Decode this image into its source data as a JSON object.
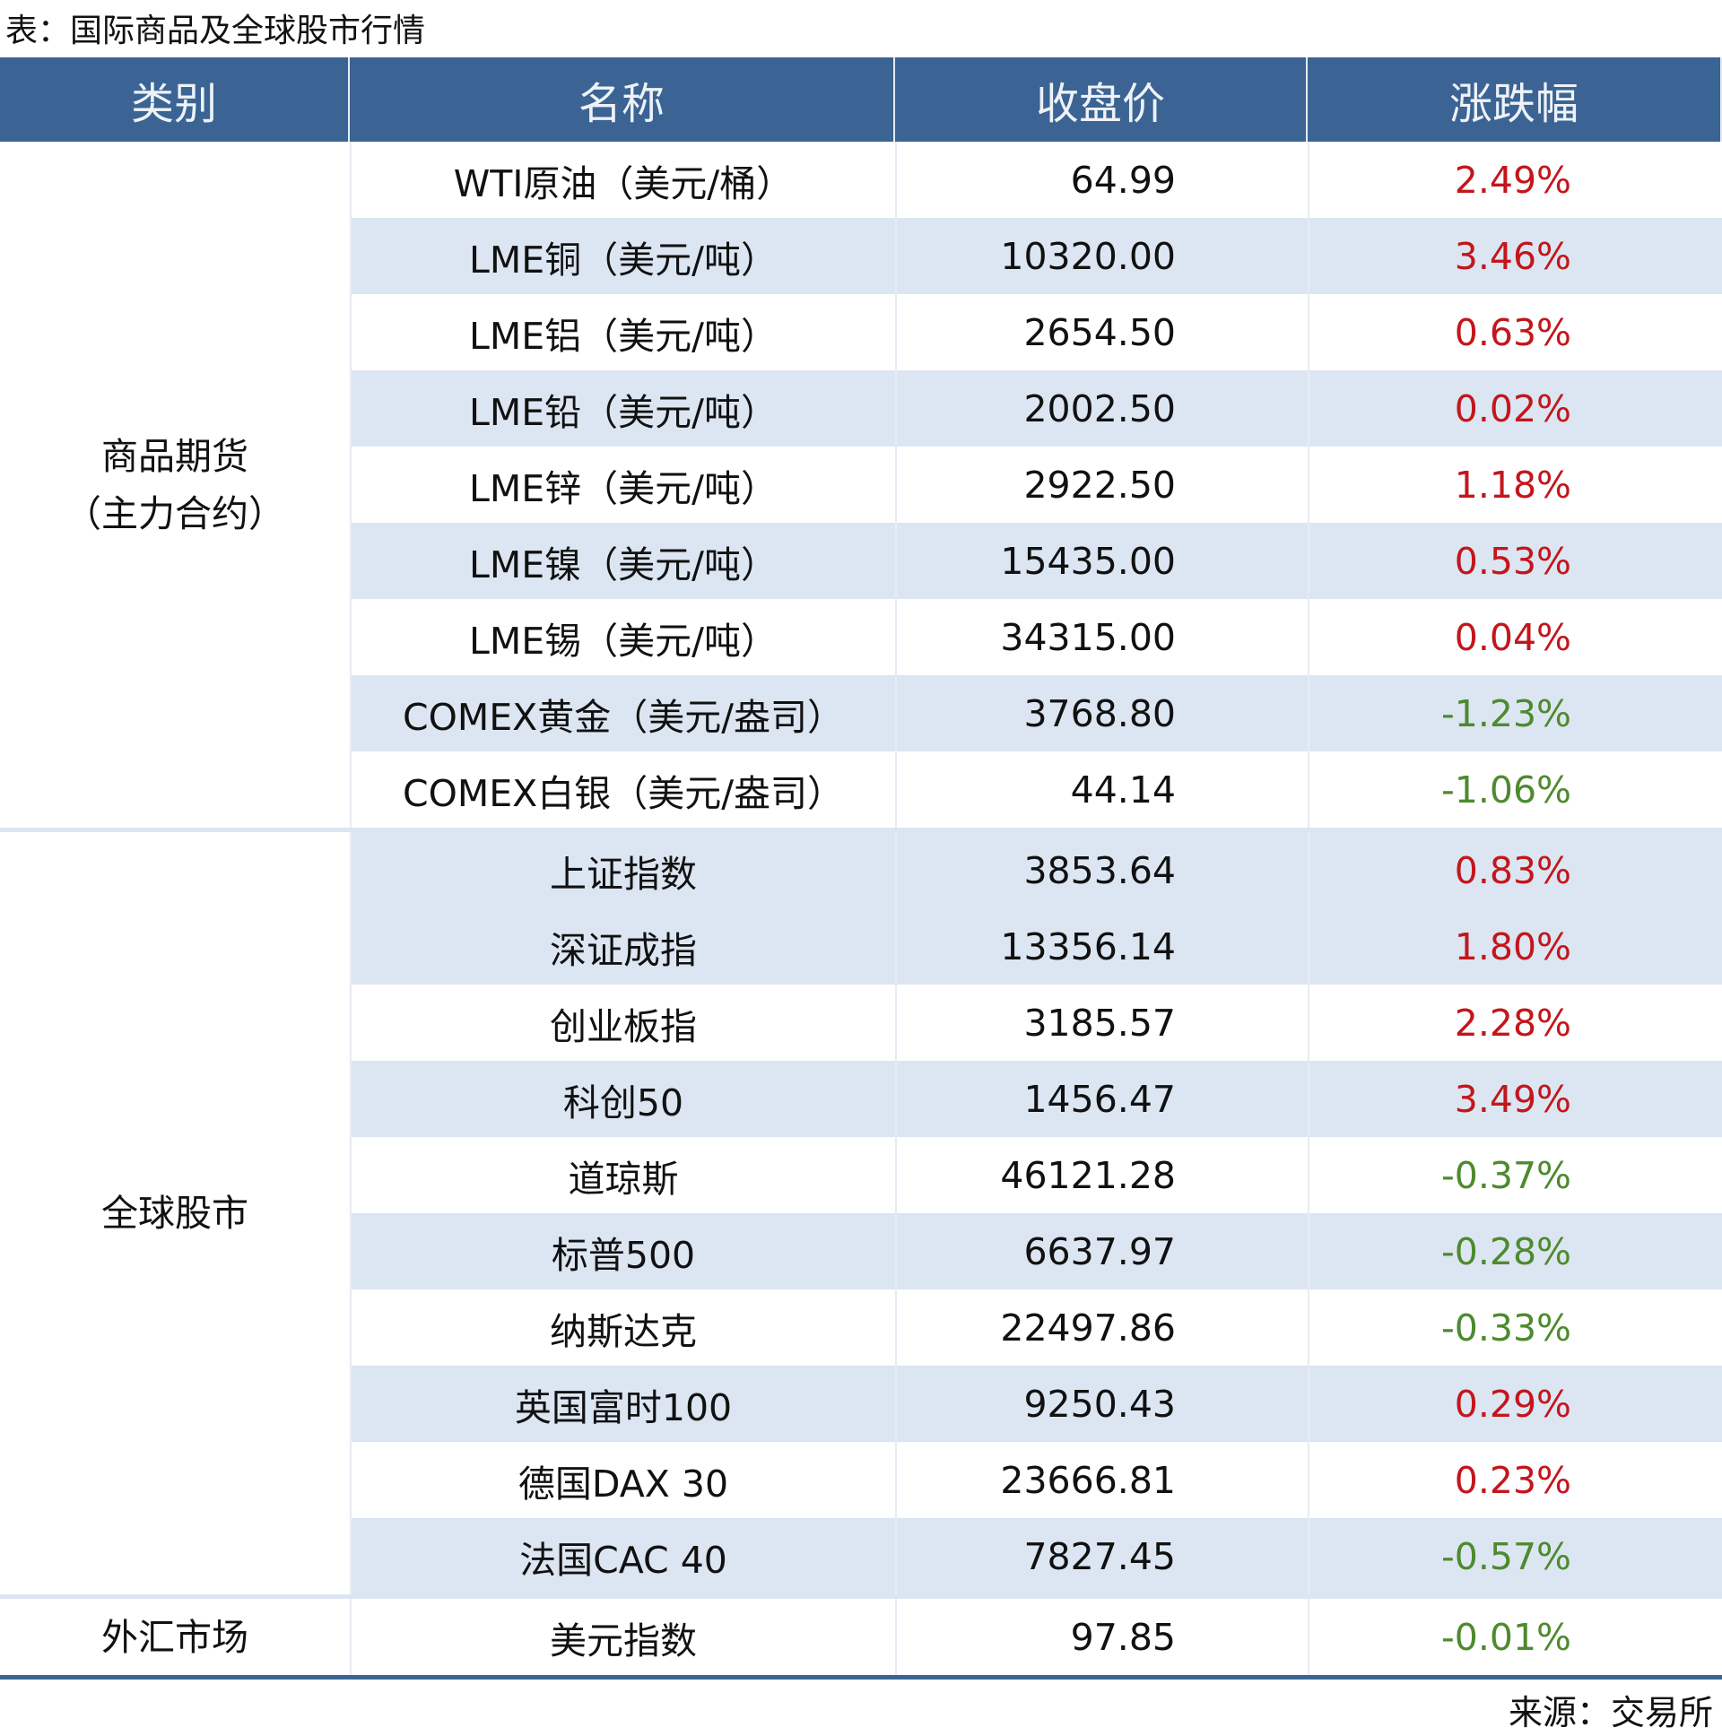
{
  "title": "表：国际商品及全球股市行情",
  "table": {
    "header": [
      "类别",
      "名称",
      "收盘价",
      "涨跌幅"
    ],
    "groups": [
      {
        "category": [
          "商品期货",
          "（主力合约）"
        ],
        "rows": [
          [
            "WTI原油（美元/桶）",
            "64.99",
            "2.49%"
          ],
          [
            "LME铜（美元/吨）",
            "10320.00",
            "3.46%"
          ],
          [
            "LME铝（美元/吨）",
            "2654.50",
            "0.63%"
          ],
          [
            "LME铅（美元/吨）",
            "2002.50",
            "0.02%"
          ],
          [
            "LME锌（美元/吨）",
            "2922.50",
            "1.18%"
          ],
          [
            "LME镍（美元/吨）",
            "15435.00",
            "0.53%"
          ],
          [
            "LME锡（美元/吨）",
            "34315.00",
            "0.04%"
          ],
          [
            "COMEX黄金（美元/盎司）",
            "3768.80",
            "-1.23%"
          ],
          [
            "COMEX白银（美元/盎司）",
            "44.14",
            "-1.06%"
          ]
        ]
      },
      {
        "category": [
          "全球股市"
        ],
        "rows": [
          [
            "上证指数",
            "3853.64",
            "0.83%"
          ],
          [
            "深证成指",
            "13356.14",
            "1.80%"
          ],
          [
            "创业板指",
            "3185.57",
            "2.28%"
          ],
          [
            "科创50",
            "1456.47",
            "3.49%"
          ],
          [
            "道琼斯",
            "46121.28",
            "-0.37%"
          ],
          [
            "标普500",
            "6637.97",
            "-0.28%"
          ],
          [
            "纳斯达克",
            "22497.86",
            "-0.33%"
          ],
          [
            "英国富时100",
            "9250.43",
            "0.29%"
          ],
          [
            "德国DAX 30",
            "23666.81",
            "0.23%"
          ],
          [
            "法国CAC 40",
            "7827.45",
            "-0.57%"
          ]
        ]
      },
      {
        "category": [
          "外汇市场"
        ],
        "rows": [
          [
            "美元指数",
            "97.85",
            "-0.01%"
          ]
        ]
      }
    ]
  },
  "source": "来源：交易所"
}
